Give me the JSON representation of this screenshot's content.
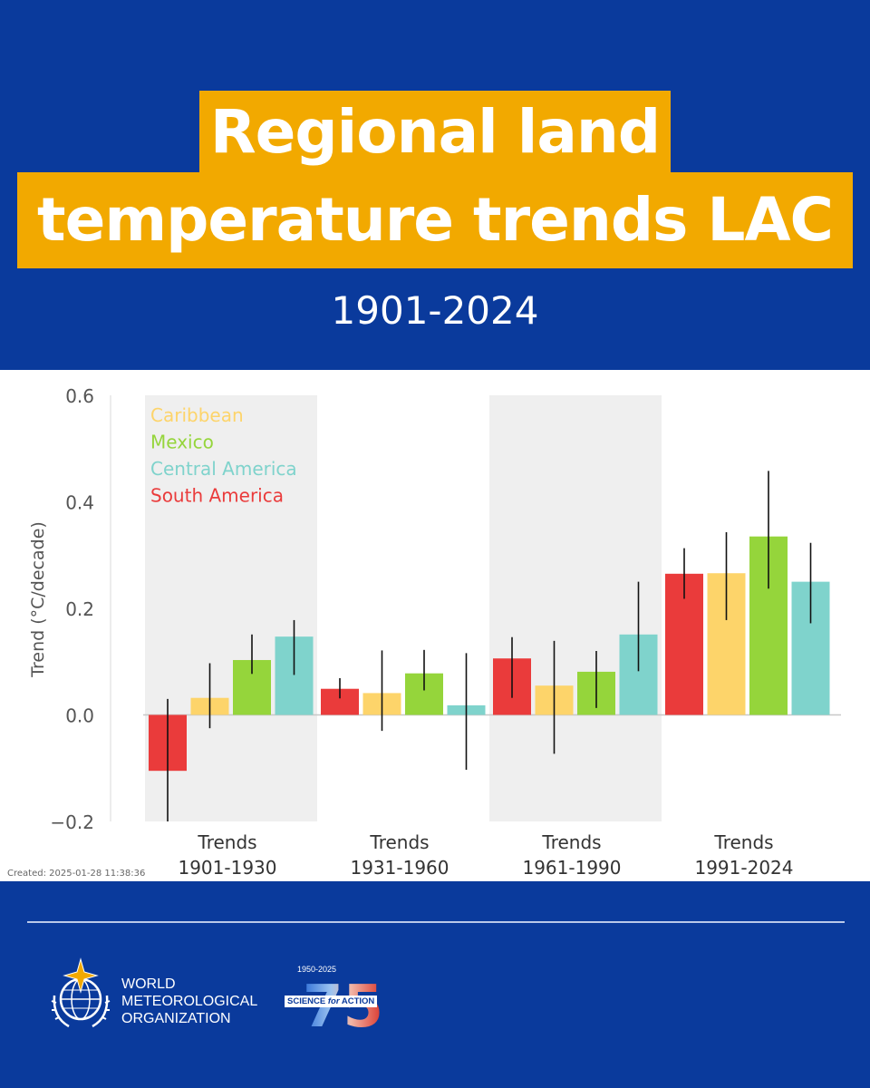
{
  "header": {
    "title_line_1": "Regional land",
    "title_line_2": "temperature trends LAC",
    "subtitle": "1901-2024"
  },
  "colors": {
    "background": "#0a3a9c",
    "title_highlight": "#f2a900",
    "caribbean": "#fdd46a",
    "mexico": "#95d53b",
    "central_america": "#7fd3cc",
    "south_america": "#ea3b3b"
  },
  "chart_data": {
    "type": "bar",
    "ylabel": "Trend (°C/decade)",
    "ylim": [
      -0.2,
      0.6
    ],
    "yticks": [
      {
        "value": 0.6,
        "label": "0.6"
      },
      {
        "value": 0.4,
        "label": "0.4"
      },
      {
        "value": 0.2,
        "label": "0.2"
      },
      {
        "value": 0.0,
        "label": "0.0"
      },
      {
        "value": -0.2,
        "label": "−0.2"
      }
    ],
    "legend": {
      "position": "top-left",
      "entries": [
        {
          "name": "Caribbean",
          "color": "#fdd46a"
        },
        {
          "name": "Mexico",
          "color": "#95d53b"
        },
        {
          "name": "Central America",
          "color": "#7fd3cc"
        },
        {
          "name": "South America",
          "color": "#ea3b3b"
        }
      ]
    },
    "categories": [
      {
        "line1": "Trends",
        "line2": "1901-1930",
        "shaded": true
      },
      {
        "line1": "Trends",
        "line2": "1931-1960",
        "shaded": false
      },
      {
        "line1": "Trends",
        "line2": "1961-1990",
        "shaded": true
      },
      {
        "line1": "Trends",
        "line2": "1991-2024",
        "shaded": false
      }
    ],
    "series_order": [
      "South America",
      "Caribbean",
      "Mexico",
      "Central America"
    ],
    "series": [
      {
        "name": "South America",
        "color": "#ea3b3b",
        "values": [
          -0.105,
          0.049,
          0.106,
          0.265
        ],
        "err_low": [
          -0.2,
          0.031,
          0.032,
          0.218
        ],
        "err_high": [
          0.03,
          0.069,
          0.146,
          0.313
        ]
      },
      {
        "name": "Caribbean",
        "color": "#fdd46a",
        "values": [
          0.032,
          0.041,
          0.055,
          0.266
        ],
        "err_low": [
          -0.025,
          -0.03,
          -0.073,
          0.178
        ],
        "err_high": [
          0.097,
          0.121,
          0.139,
          0.343
        ]
      },
      {
        "name": "Mexico",
        "color": "#95d53b",
        "values": [
          0.103,
          0.078,
          0.081,
          0.335
        ],
        "err_low": [
          0.077,
          0.046,
          0.013,
          0.237
        ],
        "err_high": [
          0.151,
          0.122,
          0.12,
          0.458
        ]
      },
      {
        "name": "Central America",
        "color": "#7fd3cc",
        "values": [
          0.147,
          0.018,
          0.151,
          0.25
        ],
        "err_low": [
          0.075,
          -0.103,
          0.082,
          0.172
        ],
        "err_high": [
          0.178,
          0.116,
          0.25,
          0.323
        ]
      }
    ],
    "footnote": "Created: 2025-01-28 11:38:36"
  },
  "footer": {
    "org_line_1": "WORLD",
    "org_line_2": "METEOROLOGICAL",
    "org_line_3": "ORGANIZATION",
    "anniv_years": "1950-2025",
    "anniv_number": "75",
    "anniv_tag_1": "SCIENCE",
    "anniv_tag_2": "for",
    "anniv_tag_3": "ACTION",
    "icons": [
      "wmo-emblem-icon",
      "anniversary-75-icon"
    ]
  }
}
